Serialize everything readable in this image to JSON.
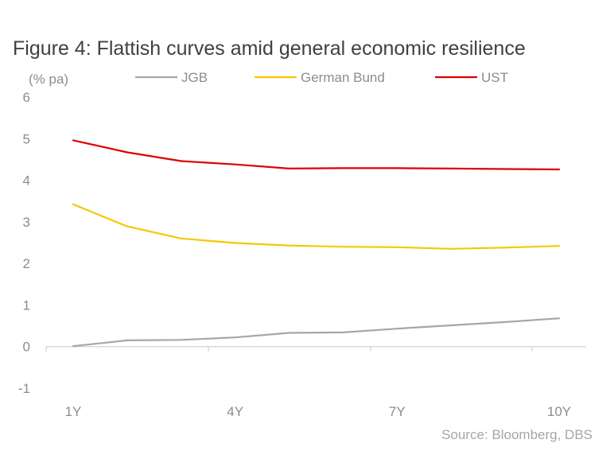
{
  "chart_data": {
    "type": "line",
    "title": "Figure 4: Flattish curves amid general economic resilience",
    "ylabel": "(% pa)",
    "xlabel": "",
    "ylim": [
      -1,
      6
    ],
    "yticks": [
      "-1",
      "0",
      "1",
      "2",
      "3",
      "4",
      "5",
      "6"
    ],
    "x": [
      "1Y",
      "2Y",
      "3Y",
      "4Y",
      "5Y",
      "6Y",
      "7Y",
      "8Y",
      "9Y",
      "10Y"
    ],
    "xtick_labels": [
      "1Y",
      "4Y",
      "7Y",
      "10Y"
    ],
    "grid": false,
    "legend_position": "top",
    "series": [
      {
        "name": "JGB",
        "color": "#a6a6a6",
        "values": [
          0.01,
          0.15,
          0.16,
          0.22,
          0.33,
          0.34,
          0.43,
          0.51,
          0.59,
          0.68
        ]
      },
      {
        "name": "German Bund",
        "color": "#f5c800",
        "values": [
          3.42,
          2.89,
          2.6,
          2.49,
          2.43,
          2.4,
          2.39,
          2.35,
          2.38,
          2.42
        ]
      },
      {
        "name": "UST",
        "color": "#e00000",
        "values": [
          4.96,
          4.67,
          4.46,
          4.38,
          4.28,
          4.29,
          4.29,
          4.28,
          4.27,
          4.26
        ]
      }
    ],
    "source": "Source: Bloomberg, DBS"
  }
}
